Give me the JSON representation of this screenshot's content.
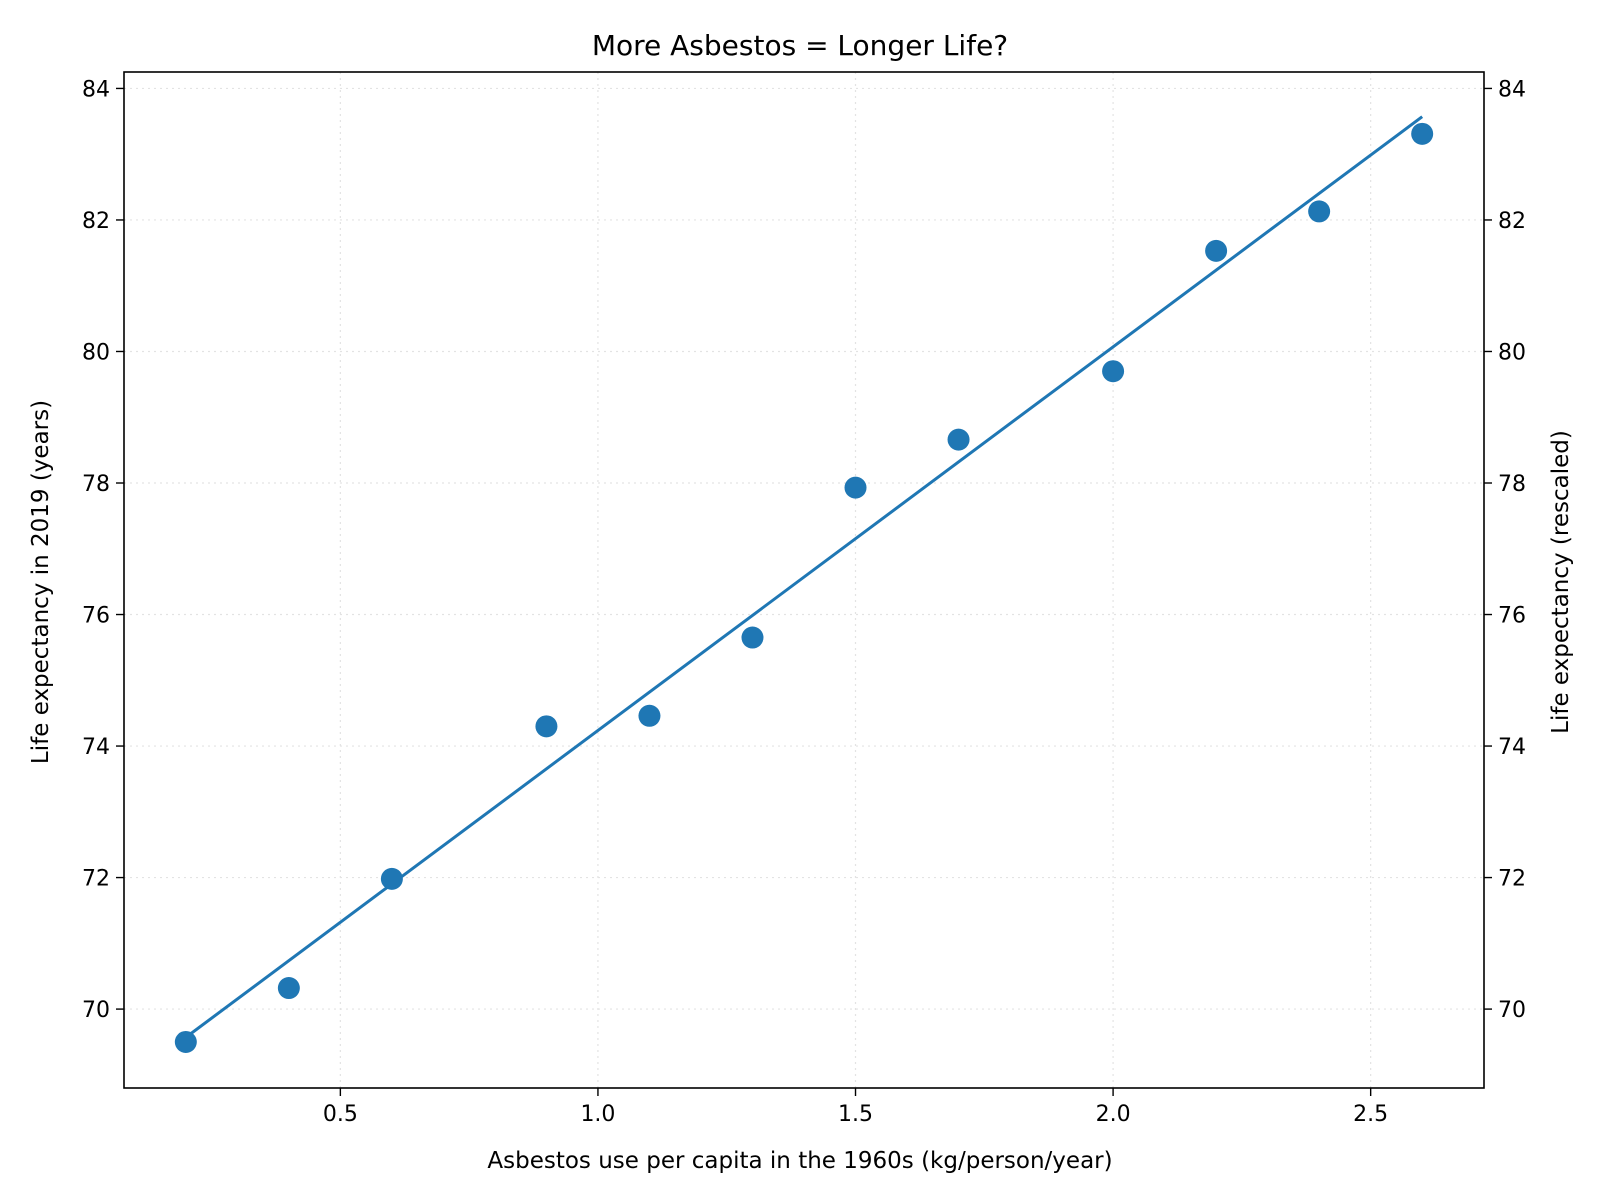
{
  "chart_data": {
    "type": "scatter",
    "title": "More Asbestos = Longer Life?",
    "xlabel": "Asbestos use per capita in the 1960s (kg/person/year)",
    "ylabel": "Life expectancy in 2019 (years)",
    "ylabel_right": "Life expectancy (rescaled)",
    "xlim": [
      0.08,
      2.72
    ],
    "ylim": [
      68.8,
      84.25
    ],
    "xticks": [
      0.5,
      1.0,
      1.5,
      2.0,
      2.5
    ],
    "xtick_labels": [
      "0.5",
      "1.0",
      "1.5",
      "2.0",
      "2.5"
    ],
    "yticks": [
      70,
      72,
      74,
      76,
      78,
      80,
      82,
      84
    ],
    "ytick_labels": [
      "70",
      "72",
      "74",
      "76",
      "78",
      "80",
      "82",
      "84"
    ],
    "grid": true,
    "color": "#1f77b4",
    "points": {
      "x": [
        0.2,
        0.4,
        0.6,
        0.9,
        1.1,
        1.3,
        1.5,
        1.7,
        2.0,
        2.2,
        2.4,
        2.6
      ],
      "y": [
        69.5,
        70.32,
        71.98,
        74.3,
        74.46,
        75.65,
        77.93,
        78.66,
        79.7,
        81.53,
        82.13,
        83.31
      ]
    },
    "trend_line": {
      "x": [
        0.2,
        2.6
      ],
      "y": [
        69.57,
        83.57
      ]
    }
  }
}
